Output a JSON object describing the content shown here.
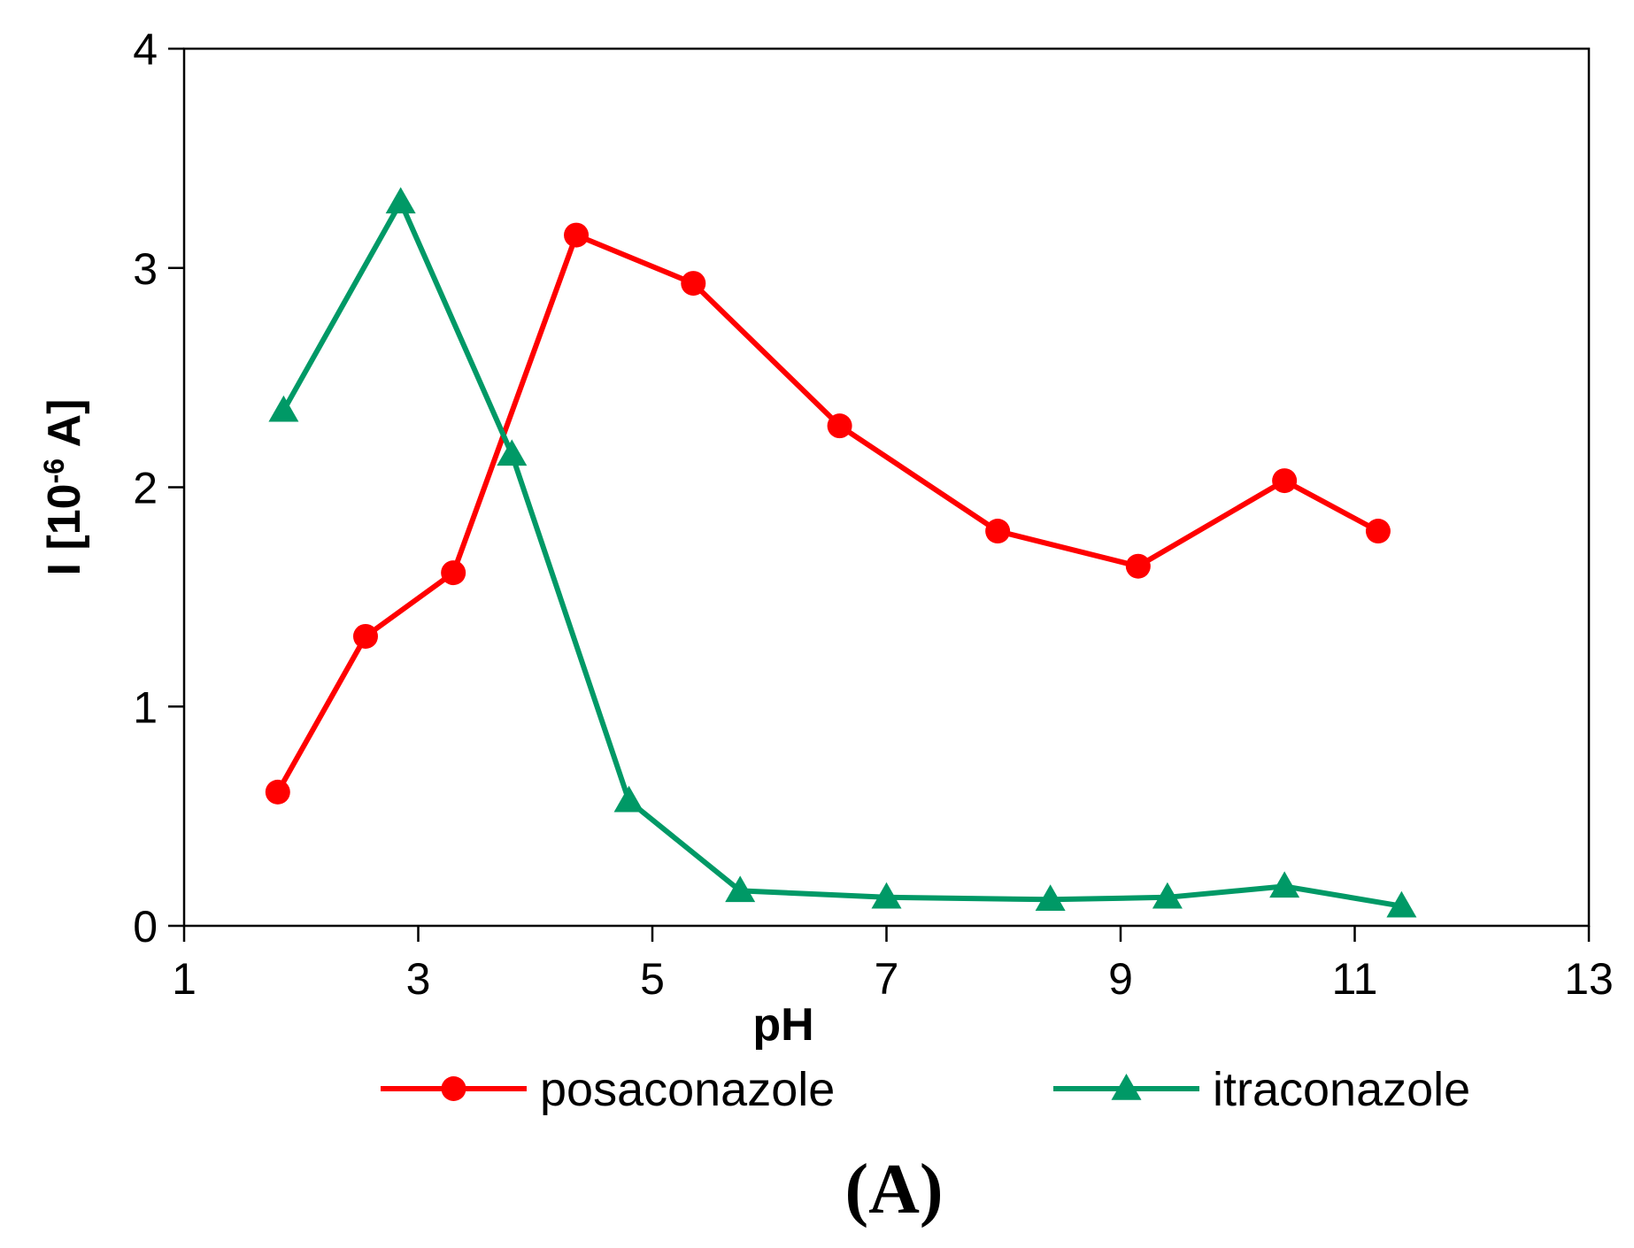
{
  "chart_data": {
    "type": "line",
    "title": "",
    "xlabel": "pH",
    "ylabel_main": "I [10",
    "ylabel_sup": "-6",
    "ylabel_tail": " A]",
    "xlim": [
      1,
      13
    ],
    "ylim": [
      0,
      4
    ],
    "x_ticks": [
      "1",
      "3",
      "5",
      "7",
      "9",
      "11",
      "13"
    ],
    "y_ticks": [
      "0",
      "1",
      "2",
      "3",
      "4"
    ],
    "grid": false,
    "legend_position": "bottom",
    "panel_label": "(A)",
    "series": [
      {
        "name": "posaconazole",
        "color": "#ff0000",
        "marker": "circle",
        "x": [
          1.8,
          2.55,
          3.3,
          4.35,
          5.35,
          6.6,
          7.95,
          9.15,
          10.4,
          11.2
        ],
        "y": [
          0.61,
          1.32,
          1.61,
          3.15,
          2.93,
          2.28,
          1.8,
          1.64,
          2.03,
          1.8
        ]
      },
      {
        "name": "itraconazole",
        "color": "#009966",
        "marker": "triangle",
        "x": [
          1.85,
          2.85,
          3.8,
          4.8,
          5.75,
          7.0,
          8.4,
          9.4,
          10.4,
          11.4
        ],
        "y": [
          2.35,
          3.3,
          2.15,
          0.57,
          0.16,
          0.13,
          0.12,
          0.13,
          0.18,
          0.09
        ]
      }
    ]
  }
}
